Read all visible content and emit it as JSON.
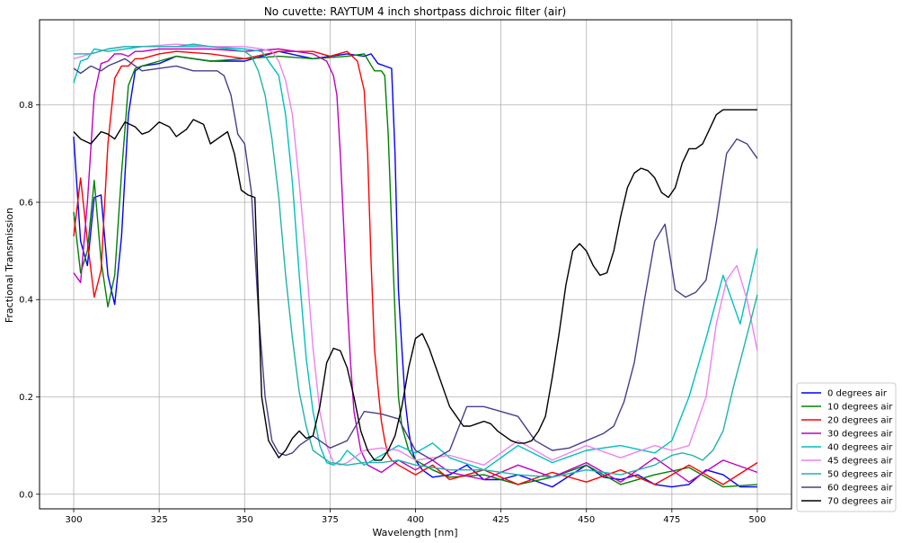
{
  "chart_data": {
    "type": "line",
    "title": "No cuvette: RAYTUM 4 inch shortpass dichroic filter (air)",
    "xlabel": "Wavelength [nm]",
    "ylabel": "Fractional Transmission",
    "xlim": [
      290,
      510
    ],
    "ylim": [
      -0.03,
      0.975
    ],
    "xticks": [
      300,
      325,
      350,
      375,
      400,
      425,
      450,
      475,
      500
    ],
    "yticks": [
      0.0,
      0.2,
      0.4,
      0.6,
      0.8
    ],
    "grid": true,
    "legend_position": "lower-right outside",
    "series": [
      {
        "name": "0 degrees air",
        "color": "#0000ff",
        "x": [
          300,
          302,
          304,
          306,
          308,
          310,
          312,
          314,
          316,
          318,
          320,
          325,
          330,
          340,
          350,
          360,
          370,
          380,
          385,
          387,
          389,
          391,
          393,
          394,
          395,
          396,
          397,
          398,
          399,
          400,
          402,
          405,
          410,
          415,
          420,
          425,
          430,
          440,
          450,
          455,
          460,
          465,
          470,
          475,
          480,
          485,
          490,
          495,
          500
        ],
        "y": [
          0.735,
          0.52,
          0.47,
          0.61,
          0.615,
          0.45,
          0.39,
          0.53,
          0.78,
          0.87,
          0.88,
          0.885,
          0.9,
          0.89,
          0.89,
          0.91,
          0.895,
          0.905,
          0.9,
          0.905,
          0.885,
          0.88,
          0.875,
          0.7,
          0.42,
          0.3,
          0.19,
          0.13,
          0.09,
          0.07,
          0.05,
          0.035,
          0.04,
          0.06,
          0.03,
          0.03,
          0.04,
          0.015,
          0.06,
          0.035,
          0.03,
          0.04,
          0.02,
          0.015,
          0.02,
          0.05,
          0.04,
          0.015,
          0.015
        ]
      },
      {
        "name": "10 degrees air",
        "color": "#008000",
        "x": [
          300,
          302,
          304,
          306,
          308,
          310,
          312,
          314,
          316,
          318,
          320,
          325,
          330,
          340,
          350,
          360,
          370,
          380,
          385,
          388,
          390,
          391,
          392,
          393,
          394,
          395,
          396,
          398,
          400,
          405,
          410,
          420,
          430,
          440,
          450,
          460,
          470,
          480,
          490,
          500
        ],
        "y": [
          0.58,
          0.455,
          0.5,
          0.645,
          0.48,
          0.385,
          0.45,
          0.66,
          0.84,
          0.875,
          0.88,
          0.89,
          0.9,
          0.89,
          0.895,
          0.9,
          0.895,
          0.9,
          0.905,
          0.87,
          0.87,
          0.86,
          0.74,
          0.55,
          0.37,
          0.2,
          0.14,
          0.09,
          0.07,
          0.05,
          0.035,
          0.04,
          0.02,
          0.035,
          0.06,
          0.02,
          0.04,
          0.055,
          0.015,
          0.02
        ]
      },
      {
        "name": "20 degrees air",
        "color": "#ff0000",
        "x": [
          300,
          302,
          304,
          306,
          308,
          310,
          312,
          314,
          316,
          318,
          320,
          325,
          330,
          340,
          350,
          360,
          370,
          375,
          380,
          383,
          385,
          386,
          387,
          388,
          389,
          390,
          391,
          392,
          393,
          395,
          400,
          405,
          410,
          420,
          430,
          440,
          450,
          460,
          470,
          480,
          490,
          500
        ],
        "y": [
          0.53,
          0.65,
          0.52,
          0.405,
          0.46,
          0.72,
          0.855,
          0.88,
          0.88,
          0.895,
          0.895,
          0.905,
          0.91,
          0.905,
          0.895,
          0.91,
          0.91,
          0.9,
          0.91,
          0.89,
          0.83,
          0.7,
          0.48,
          0.3,
          0.22,
          0.15,
          0.11,
          0.08,
          0.07,
          0.06,
          0.04,
          0.06,
          0.03,
          0.05,
          0.02,
          0.045,
          0.025,
          0.05,
          0.02,
          0.06,
          0.02,
          0.065
        ]
      },
      {
        "name": "30 degrees air",
        "color": "#bf00bf",
        "x": [
          300,
          302,
          304,
          306,
          308,
          310,
          312,
          314,
          316,
          318,
          320,
          325,
          330,
          340,
          350,
          360,
          370,
          374,
          376,
          377,
          378,
          379,
          380,
          381,
          382,
          384,
          386,
          390,
          395,
          400,
          405,
          410,
          420,
          430,
          440,
          450,
          460,
          470,
          480,
          490,
          500
        ],
        "y": [
          0.455,
          0.435,
          0.6,
          0.82,
          0.885,
          0.89,
          0.905,
          0.905,
          0.9,
          0.91,
          0.91,
          0.915,
          0.915,
          0.915,
          0.91,
          0.915,
          0.905,
          0.89,
          0.86,
          0.82,
          0.7,
          0.55,
          0.4,
          0.27,
          0.17,
          0.09,
          0.06,
          0.045,
          0.07,
          0.05,
          0.07,
          0.045,
          0.03,
          0.06,
          0.035,
          0.065,
          0.025,
          0.075,
          0.025,
          0.07,
          0.045
        ]
      },
      {
        "name": "40 degrees air",
        "color": "#00bfbf",
        "x": [
          300,
          302,
          304,
          306,
          310,
          315,
          320,
          325,
          330,
          340,
          350,
          355,
          360,
          362,
          364,
          366,
          368,
          370,
          372,
          374,
          376,
          378,
          380,
          385,
          390,
          395,
          400,
          405,
          410,
          420,
          430,
          440,
          450,
          460,
          470,
          475,
          480,
          485,
          490,
          495,
          500
        ],
        "y": [
          0.845,
          0.89,
          0.895,
          0.915,
          0.91,
          0.915,
          0.92,
          0.92,
          0.92,
          0.92,
          0.915,
          0.91,
          0.86,
          0.78,
          0.64,
          0.45,
          0.28,
          0.17,
          0.1,
          0.065,
          0.06,
          0.07,
          0.09,
          0.06,
          0.08,
          0.1,
          0.085,
          0.105,
          0.075,
          0.05,
          0.1,
          0.065,
          0.09,
          0.1,
          0.085,
          0.11,
          0.2,
          0.32,
          0.45,
          0.35,
          0.505
        ]
      },
      {
        "name": "45 degrees air",
        "color": "#ee82ee",
        "x": [
          300,
          305,
          310,
          315,
          320,
          330,
          340,
          350,
          355,
          358,
          360,
          362,
          364,
          366,
          368,
          370,
          372,
          374,
          376,
          378,
          380,
          385,
          390,
          395,
          400,
          410,
          420,
          430,
          440,
          450,
          460,
          470,
          475,
          480,
          485,
          488,
          491,
          494,
          497,
          500
        ],
        "y": [
          0.895,
          0.905,
          0.915,
          0.92,
          0.92,
          0.925,
          0.92,
          0.92,
          0.915,
          0.91,
          0.89,
          0.85,
          0.78,
          0.64,
          0.48,
          0.3,
          0.17,
          0.1,
          0.065,
          0.06,
          0.065,
          0.09,
          0.095,
          0.09,
          0.07,
          0.08,
          0.06,
          0.11,
          0.07,
          0.1,
          0.075,
          0.1,
          0.09,
          0.1,
          0.2,
          0.35,
          0.44,
          0.47,
          0.4,
          0.295
        ]
      },
      {
        "name": "50 degrees air",
        "color": "#20b2aa",
        "x": [
          300,
          305,
          310,
          315,
          320,
          330,
          335,
          340,
          345,
          350,
          352,
          354,
          356,
          358,
          360,
          362,
          364,
          366,
          368,
          370,
          375,
          380,
          385,
          390,
          395,
          400,
          405,
          410,
          420,
          430,
          440,
          450,
          460,
          470,
          475,
          478,
          481,
          484,
          487,
          490,
          493,
          496,
          500
        ],
        "y": [
          0.905,
          0.905,
          0.915,
          0.92,
          0.92,
          0.92,
          0.925,
          0.92,
          0.915,
          0.91,
          0.9,
          0.87,
          0.82,
          0.73,
          0.61,
          0.45,
          0.32,
          0.21,
          0.14,
          0.09,
          0.065,
          0.06,
          0.065,
          0.065,
          0.07,
          0.06,
          0.055,
          0.05,
          0.05,
          0.04,
          0.035,
          0.05,
          0.04,
          0.06,
          0.08,
          0.085,
          0.08,
          0.07,
          0.09,
          0.13,
          0.22,
          0.3,
          0.41
        ]
      },
      {
        "name": "60 degrees air",
        "color": "#483d8b",
        "x": [
          300,
          302,
          305,
          308,
          310,
          315,
          320,
          325,
          330,
          335,
          340,
          342,
          344,
          346,
          348,
          350,
          352,
          354,
          356,
          358,
          360,
          362,
          364,
          366,
          368,
          370,
          375,
          380,
          385,
          390,
          395,
          400,
          405,
          410,
          415,
          420,
          425,
          430,
          435,
          440,
          445,
          450,
          455,
          458,
          461,
          464,
          467,
          470,
          473,
          476,
          479,
          482,
          485,
          488,
          491,
          494,
          497,
          500
        ],
        "y": [
          0.875,
          0.865,
          0.88,
          0.87,
          0.88,
          0.895,
          0.87,
          0.875,
          0.88,
          0.87,
          0.87,
          0.87,
          0.86,
          0.82,
          0.74,
          0.72,
          0.62,
          0.38,
          0.2,
          0.11,
          0.085,
          0.08,
          0.085,
          0.1,
          0.11,
          0.12,
          0.095,
          0.11,
          0.17,
          0.165,
          0.155,
          0.09,
          0.07,
          0.09,
          0.18,
          0.18,
          0.17,
          0.16,
          0.11,
          0.09,
          0.095,
          0.11,
          0.125,
          0.14,
          0.19,
          0.27,
          0.4,
          0.52,
          0.555,
          0.42,
          0.405,
          0.415,
          0.44,
          0.56,
          0.7,
          0.73,
          0.72,
          0.69
        ]
      },
      {
        "name": "70 degrees air",
        "color": "#000000",
        "x": [
          300,
          302,
          305,
          308,
          310,
          312,
          315,
          318,
          320,
          322,
          325,
          328,
          330,
          333,
          335,
          338,
          340,
          342,
          345,
          347,
          349,
          351,
          353,
          355,
          357,
          360,
          362,
          364,
          366,
          368,
          370,
          372,
          374,
          376,
          378,
          380,
          382,
          384,
          386,
          388,
          390,
          392,
          394,
          396,
          398,
          400,
          402,
          404,
          406,
          408,
          410,
          412,
          414,
          416,
          418,
          420,
          422,
          424,
          426,
          428,
          430,
          432,
          434,
          436,
          438,
          440,
          442,
          444,
          446,
          448,
          450,
          452,
          454,
          456,
          458,
          460,
          462,
          464,
          466,
          468,
          470,
          472,
          474,
          476,
          478,
          480,
          482,
          484,
          486,
          488,
          490,
          492,
          494,
          496,
          498,
          500
        ],
        "y": [
          0.745,
          0.73,
          0.72,
          0.745,
          0.74,
          0.73,
          0.765,
          0.755,
          0.74,
          0.745,
          0.765,
          0.755,
          0.735,
          0.75,
          0.77,
          0.76,
          0.72,
          0.73,
          0.745,
          0.7,
          0.625,
          0.615,
          0.61,
          0.2,
          0.11,
          0.075,
          0.09,
          0.115,
          0.13,
          0.115,
          0.12,
          0.18,
          0.27,
          0.3,
          0.295,
          0.26,
          0.2,
          0.13,
          0.09,
          0.07,
          0.07,
          0.09,
          0.12,
          0.18,
          0.26,
          0.32,
          0.33,
          0.3,
          0.26,
          0.22,
          0.18,
          0.16,
          0.14,
          0.14,
          0.145,
          0.15,
          0.145,
          0.13,
          0.12,
          0.11,
          0.105,
          0.105,
          0.11,
          0.13,
          0.16,
          0.24,
          0.33,
          0.43,
          0.5,
          0.515,
          0.5,
          0.47,
          0.45,
          0.455,
          0.5,
          0.57,
          0.63,
          0.66,
          0.67,
          0.665,
          0.65,
          0.62,
          0.61,
          0.63,
          0.68,
          0.71,
          0.71,
          0.72,
          0.75,
          0.78,
          0.79,
          0.79,
          0.79,
          0.79,
          0.79,
          0.79
        ]
      }
    ]
  }
}
